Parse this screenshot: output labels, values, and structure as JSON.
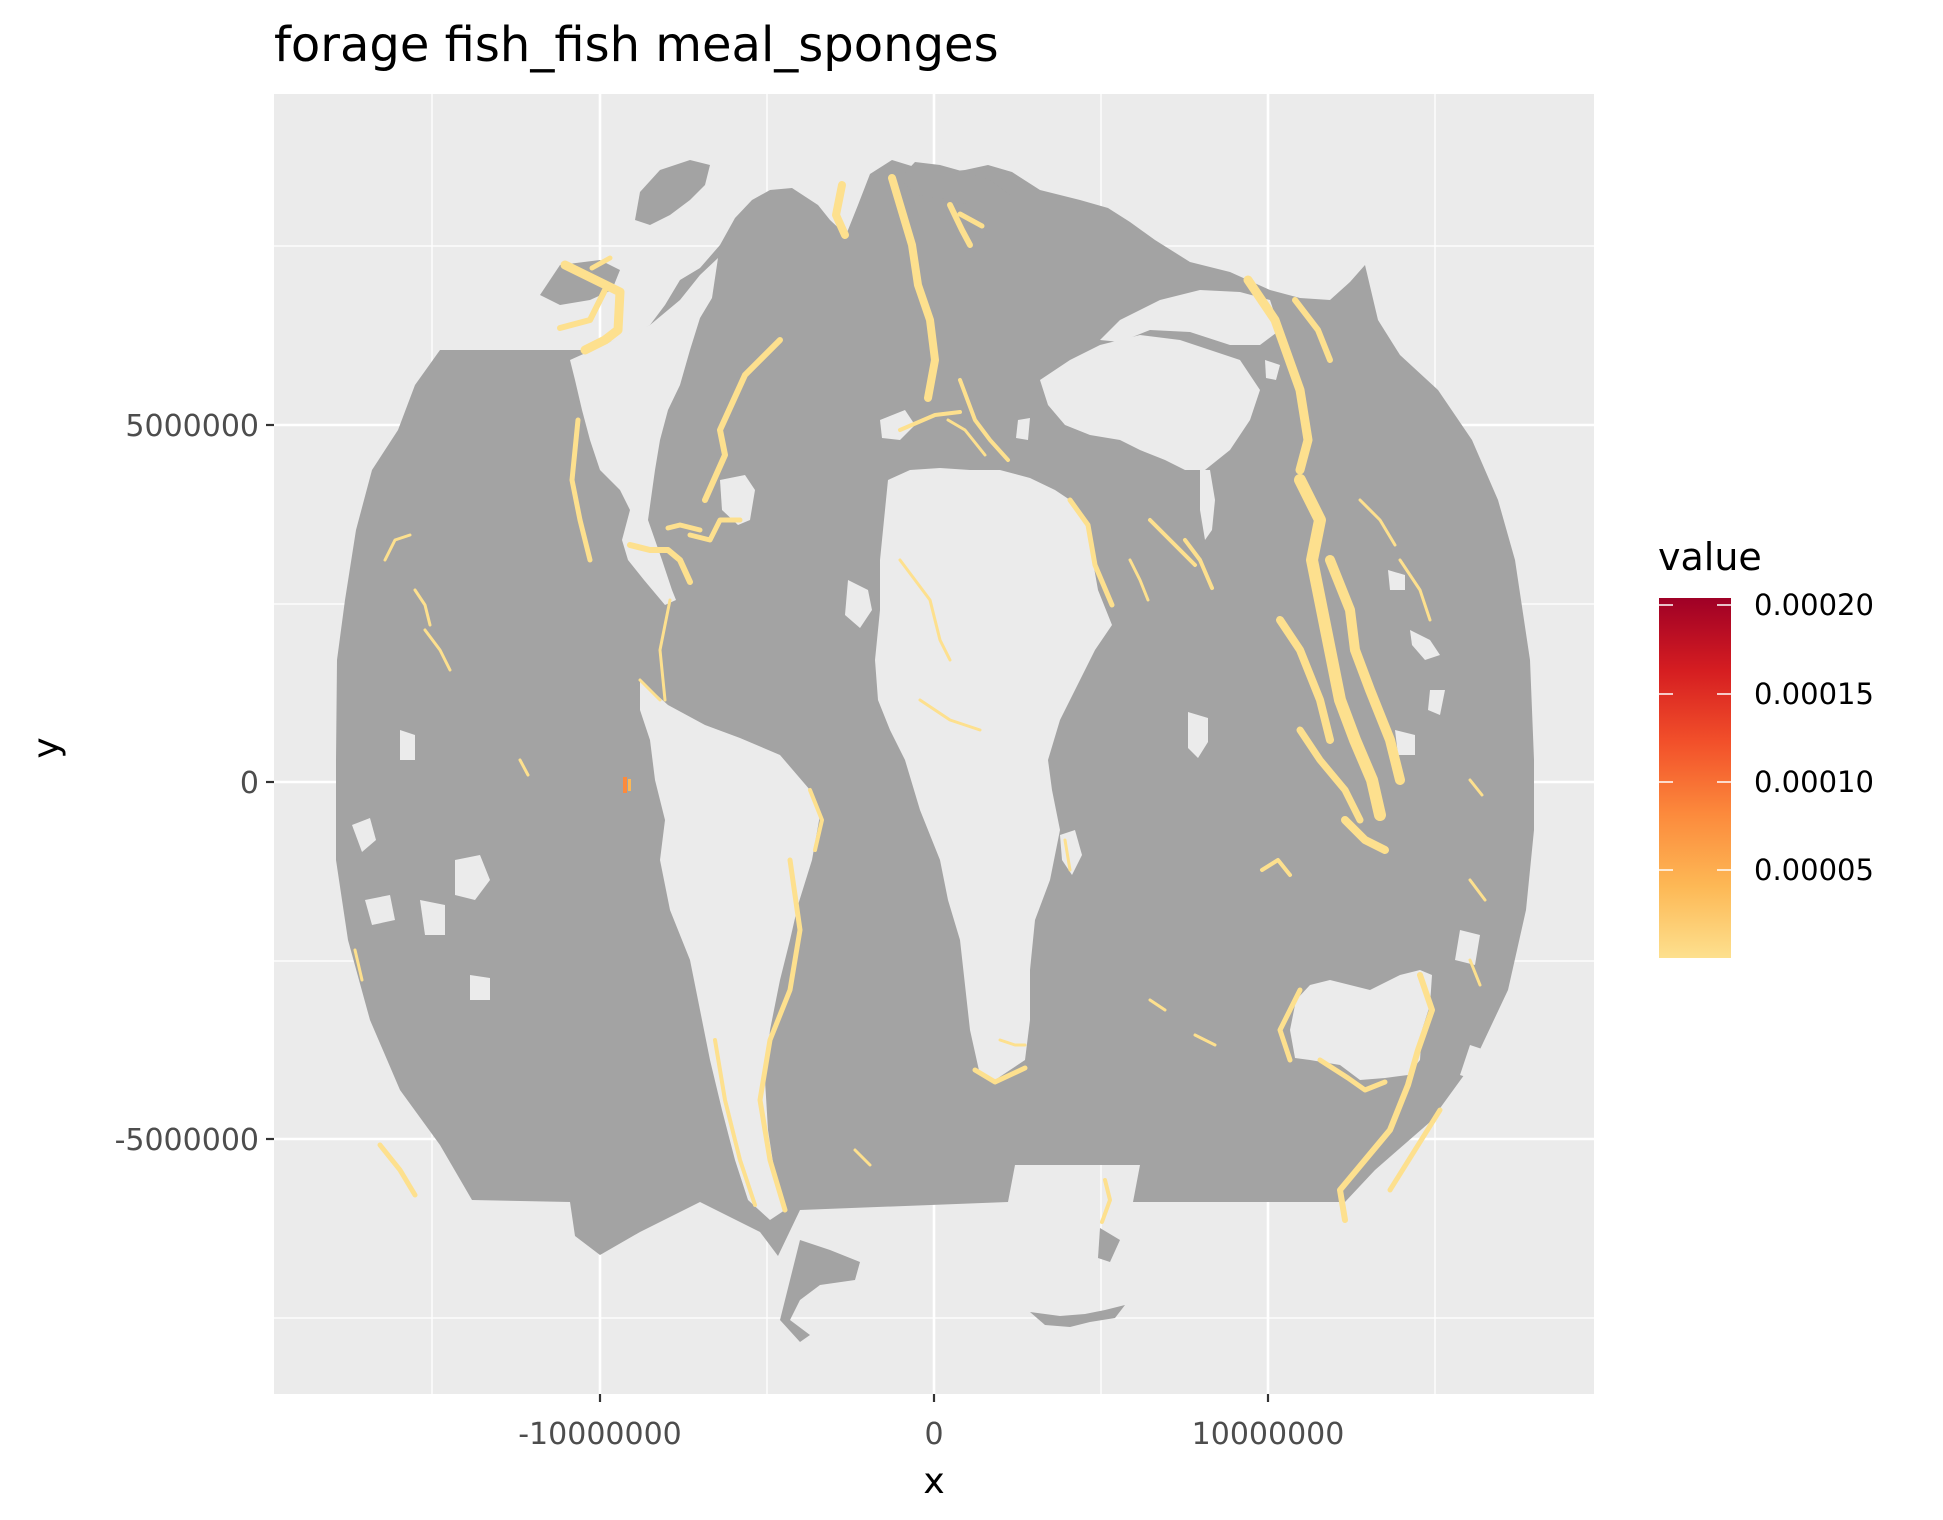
{
  "title": "forage fish_fish meal_sponges",
  "map": {
    "panel_background": "#ebebeb",
    "grid_color": "#ffffff",
    "ocean_color": "#a3a3a3",
    "land_color": "#ebebeb",
    "low_value_color": "#fde08e",
    "high_value_color": "#b01a27"
  },
  "axes": {
    "x": {
      "title": "x",
      "ticks": [
        {
          "value": -10000000,
          "label": "-10000000"
        },
        {
          "value": 0,
          "label": "0"
        },
        {
          "value": 10000000,
          "label": "10000000"
        }
      ]
    },
    "y": {
      "title": "y",
      "ticks": [
        {
          "value": 5000000,
          "label": "5000000"
        },
        {
          "value": 0,
          "label": "0"
        },
        {
          "value": -5000000,
          "label": "-5000000"
        }
      ]
    }
  },
  "legend": {
    "title": "value",
    "labels": [
      "0.00020",
      "0.00015",
      "0.00010",
      "0.00005"
    ],
    "colors": [
      "#fde08e",
      "#fdb855",
      "#fc8a3c",
      "#f2502a",
      "#d51d21",
      "#9f0026"
    ]
  }
}
